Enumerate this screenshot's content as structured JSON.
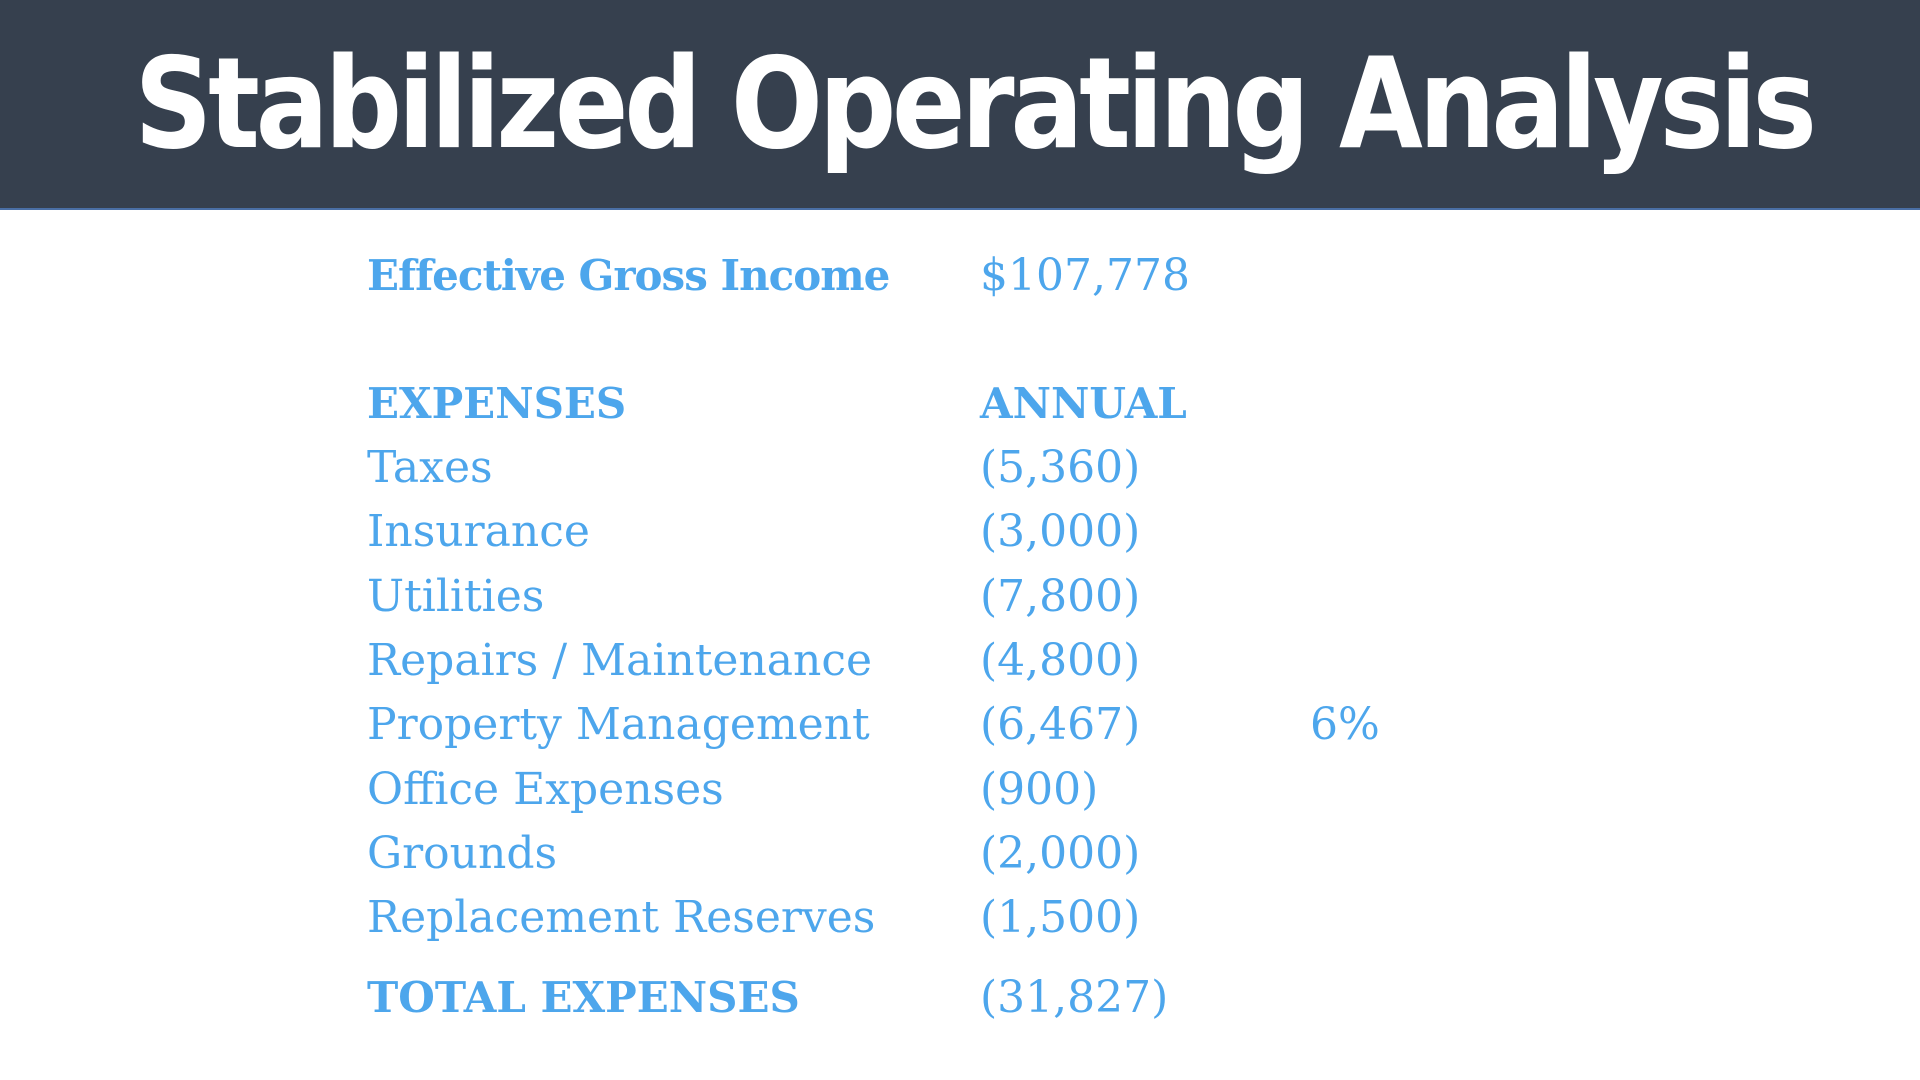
{
  "title": "Stabilized Operating Analysis",
  "income": {
    "label": "Effective Gross Income",
    "value": "$107,778"
  },
  "expenses_header": {
    "label": "EXPENSES",
    "column": "ANNUAL"
  },
  "expenses": [
    {
      "label": "Taxes",
      "amount": "(5,360)",
      "note": ""
    },
    {
      "label": "Insurance",
      "amount": "(3,000)",
      "note": ""
    },
    {
      "label": "Utilities",
      "amount": "(7,800)",
      "note": ""
    },
    {
      "label": "Repairs / Maintenance",
      "amount": "(4,800)",
      "note": ""
    },
    {
      "label": "Property Management",
      "amount": "(6,467)",
      "note": "6%"
    },
    {
      "label": "Office Expenses",
      "amount": "(900)",
      "note": ""
    },
    {
      "label": "Grounds",
      "amount": "(2,000)",
      "note": ""
    },
    {
      "label": "Replacement Reserves",
      "amount": "(1,500)",
      "note": ""
    }
  ],
  "total": {
    "label": "TOTAL EXPENSES",
    "amount": "(31,827)"
  },
  "colors": {
    "header_background": "#36404e",
    "title_text": "#ffffff",
    "body_text": "#4da6ec"
  }
}
